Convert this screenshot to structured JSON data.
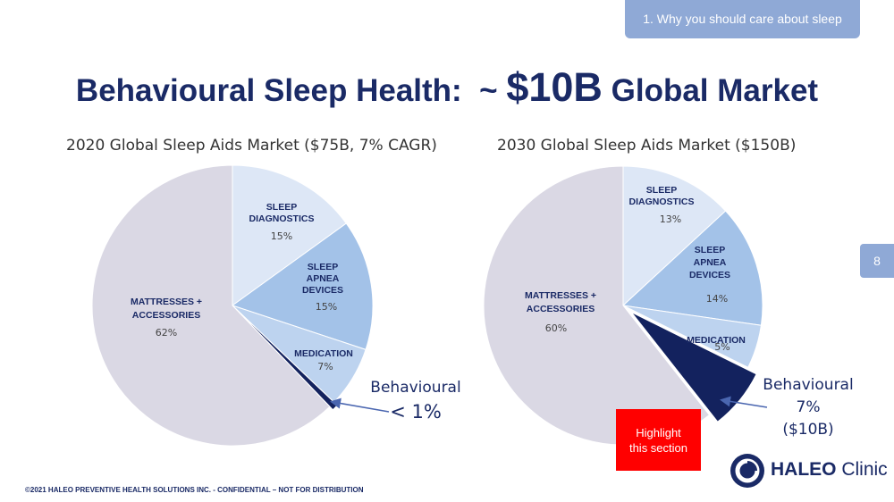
{
  "header": {
    "section_tag": "1. Why you should care about sleep",
    "title_part1": "Behavioural Sleep Health:  ~ ",
    "title_part2": "$10B",
    "title_part3": " Global Market",
    "page_number": "8"
  },
  "chart_data": [
    {
      "type": "pie",
      "title": "2020 Global Sleep Aids Market ($75B, 7% CAGR)",
      "slices": [
        {
          "label": "SLEEP DIAGNOSTICS",
          "value": 15,
          "pct_label": "15%",
          "color": "#dde7f6"
        },
        {
          "label": "SLEEP APNEA DEVICES",
          "value": 15,
          "pct_label": "15%",
          "color": "#a3c2e8"
        },
        {
          "label": "MEDICATION",
          "value": 7,
          "pct_label": "7%",
          "color": "#bdd3ef"
        },
        {
          "label": "Behavioural",
          "value": 0.7,
          "pct_label": "< 1%",
          "color": "#13225e"
        },
        {
          "label": "MATTRESSES + ACCESSORIES",
          "value": 62,
          "pct_label": "62%",
          "color": "#dad8e4"
        }
      ],
      "callout": {
        "line1": "Behavioural",
        "line2": "< 1%"
      }
    },
    {
      "type": "pie",
      "title": "2030 Global Sleep Aids Market ($150B)",
      "slices": [
        {
          "label": "SLEEP DIAGNOSTICS",
          "value": 13,
          "pct_label": "13%",
          "color": "#dde7f6"
        },
        {
          "label": "SLEEP APNEA DEVICES",
          "value": 14,
          "pct_label": "14%",
          "color": "#a3c2e8"
        },
        {
          "label": "MEDICATION",
          "value": 5,
          "pct_label": "5%",
          "color": "#bdd3ef"
        },
        {
          "label": "Behavioural",
          "value": 7,
          "pct_label": "7%",
          "color": "#13225e"
        },
        {
          "label": "MATTRESSES + ACCESSORIES",
          "value": 60,
          "pct_label": "60%",
          "color": "#dad8e4"
        }
      ],
      "callout": {
        "line1": "Behavioural",
        "line2": "7%",
        "line3": "($10B)"
      }
    }
  ],
  "highlight": {
    "line1": "Highlight",
    "line2": "this section"
  },
  "logo": {
    "brand_bold": "HALEO",
    "brand_light": " Clinic"
  },
  "footer": "©2021 HALEO PREVENTIVE HEALTH SOLUTIONS INC. -  CONFIDENTIAL – NOT FOR DISTRIBUTION"
}
